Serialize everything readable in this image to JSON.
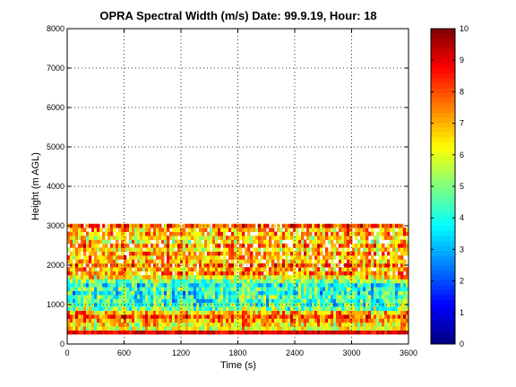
{
  "chart_data": {
    "type": "heatmap",
    "title": "OPRA Spectral Width (m/s)  Date: 99.9.19, Hour: 18",
    "xlabel": "Time (s)",
    "ylabel": "Height (m AGL)",
    "xlim": [
      0,
      3600
    ],
    "ylim": [
      0,
      8000
    ],
    "xticks": [
      0,
      600,
      1200,
      1800,
      2400,
      3000,
      3600
    ],
    "yticks": [
      0,
      1000,
      2000,
      3000,
      4000,
      5000,
      6000,
      7000,
      8000
    ],
    "grid": true,
    "colorbar": {
      "range": [
        0,
        10
      ],
      "ticks": [
        0,
        1,
        2,
        3,
        4,
        5,
        6,
        7,
        8,
        9,
        10
      ],
      "colormap": "jet"
    },
    "height_bands": [
      {
        "height": 300,
        "spectral_width": 9.0
      },
      {
        "height": 400,
        "spectral_width": 6.0
      },
      {
        "height": 500,
        "spectral_width": 6.5
      },
      {
        "height": 600,
        "spectral_width": 7.0
      },
      {
        "height": 700,
        "spectral_width": 8.0
      },
      {
        "height": 800,
        "spectral_width": 7.0
      },
      {
        "height": 900,
        "spectral_width": 5.0
      },
      {
        "height": 1000,
        "spectral_width": 4.5
      },
      {
        "height": 1100,
        "spectral_width": 4.2
      },
      {
        "height": 1200,
        "spectral_width": 4.5
      },
      {
        "height": 1300,
        "spectral_width": 4.0
      },
      {
        "height": 1400,
        "spectral_width": 4.5
      },
      {
        "height": 1500,
        "spectral_width": 4.0
      },
      {
        "height": 1600,
        "spectral_width": 5.0
      },
      {
        "height": 1700,
        "spectral_width": 6.5
      },
      {
        "height": 1800,
        "spectral_width": 7.5
      },
      {
        "height": 1900,
        "spectral_width": 7.0
      },
      {
        "height": 2000,
        "spectral_width": 7.5
      },
      {
        "height": 2100,
        "spectral_width": 7.0
      },
      {
        "height": 2200,
        "spectral_width": 7.0
      },
      {
        "height": 2300,
        "spectral_width": 7.5
      },
      {
        "height": 2400,
        "spectral_width": 6.5
      },
      {
        "height": 2500,
        "spectral_width": 7.5
      },
      {
        "height": 2600,
        "spectral_width": 6.5
      },
      {
        "height": 2700,
        "spectral_width": 6.5
      },
      {
        "height": 2800,
        "spectral_width": 7.0
      },
      {
        "height": 2900,
        "spectral_width": 7.0
      },
      {
        "height": 3000,
        "spectral_width": 8.0
      }
    ],
    "data_top_height": 3000
  }
}
